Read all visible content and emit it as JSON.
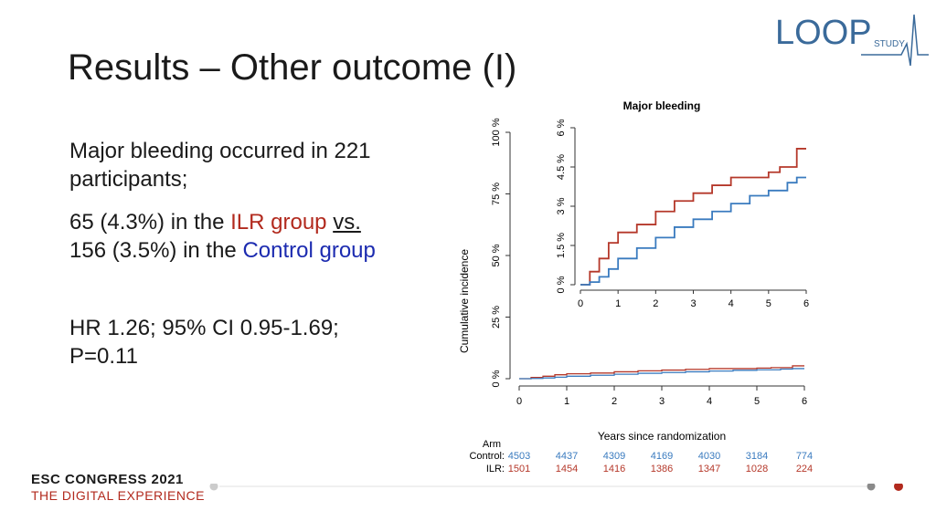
{
  "slide": {
    "title": "Results – Other outcome (I)",
    "line1": "Major bleeding occurred in 221",
    "line2": "participants;",
    "line3_a": "65 (4.3%) in the ",
    "line3_b": "ILR group",
    "line3_c": " ",
    "line3_d": "vs.",
    "line4_a": "156 (3.5%) in the ",
    "line4_b": "Control group",
    "hr_line1": "HR 1.26; 95% CI 0.95-1.69;",
    "hr_line2": "P=0.11"
  },
  "logo": {
    "main": "LOOP",
    "sub": "STUDY"
  },
  "footer": {
    "title": "ESC CONGRESS 2021",
    "subtitle": "THE DIGITAL EXPERIENCE"
  },
  "colors": {
    "ilr": "#b5382a",
    "control": "#3a7bbf",
    "accent": "#b22a1e"
  },
  "chart_data": {
    "type": "line",
    "title": "Major bleeding",
    "xlabel": "Years since randomization",
    "ylabel": "Cumulative incidence",
    "x_ticks": [
      "0",
      "1",
      "2",
      "3",
      "4",
      "5",
      "6"
    ],
    "y_ticks": [
      "0 %",
      "25 %",
      "50 %",
      "75 %",
      "100 %"
    ],
    "xlim": [
      0,
      6
    ],
    "ylim": [
      0,
      100
    ],
    "inset": {
      "y_ticks": [
        "0 %",
        "1.5 %",
        "3 %",
        "4.5 %",
        "6 %"
      ],
      "x_ticks": [
        "0",
        "1",
        "2",
        "3",
        "4",
        "5",
        "6"
      ],
      "ylim": [
        0,
        6
      ]
    },
    "series": [
      {
        "name": "ILR",
        "x": [
          0,
          0.25,
          0.5,
          0.75,
          1.0,
          1.5,
          2.0,
          2.5,
          3.0,
          3.5,
          4.0,
          4.5,
          5.0,
          5.3,
          5.6,
          5.75,
          6.0
        ],
        "y": [
          0,
          0.5,
          1.0,
          1.6,
          2.0,
          2.3,
          2.8,
          3.2,
          3.5,
          3.8,
          4.1,
          4.1,
          4.3,
          4.5,
          4.5,
          5.2,
          5.2
        ]
      },
      {
        "name": "Control",
        "x": [
          0,
          0.25,
          0.5,
          0.75,
          1.0,
          1.5,
          2.0,
          2.5,
          3.0,
          3.5,
          4.0,
          4.5,
          5.0,
          5.5,
          5.75,
          6.0
        ],
        "y": [
          0,
          0.1,
          0.3,
          0.6,
          1.0,
          1.4,
          1.8,
          2.2,
          2.5,
          2.8,
          3.1,
          3.4,
          3.6,
          3.9,
          4.1,
          4.1
        ]
      }
    ],
    "risk_table": {
      "header": "Arm",
      "rows": [
        {
          "label": "Control:",
          "values": [
            "4503",
            "4437",
            "4309",
            "4169",
            "4030",
            "3184",
            "774"
          ]
        },
        {
          "label": "ILR:",
          "values": [
            "1501",
            "1454",
            "1416",
            "1386",
            "1347",
            "1028",
            "224"
          ]
        }
      ]
    }
  }
}
